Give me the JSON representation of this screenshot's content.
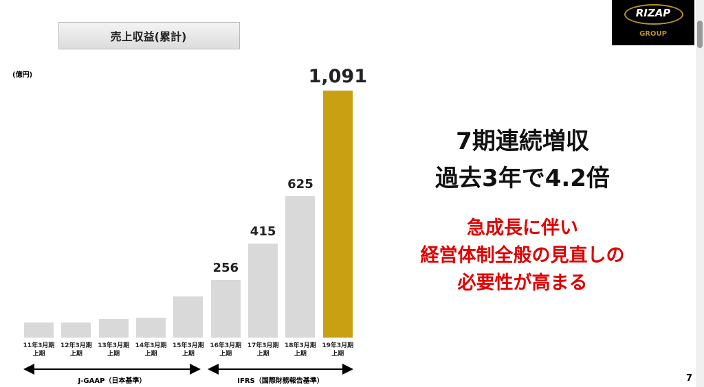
{
  "chart_data": {
    "type": "bar",
    "title": "売上収益(累計)",
    "unit_label": "(億円)",
    "categories": [
      "11年3月期\n上期",
      "12年3月期\n上期",
      "13年3月期\n上期",
      "14年3月期\n上期",
      "15年3月期\n上期",
      "16年3月期\n上期",
      "17年3月期\n上期",
      "18年3月期\n上期",
      "19年3月期\n上期"
    ],
    "values": [
      67,
      67,
      82,
      88,
      182,
      256,
      415,
      625,
      1091
    ],
    "value_labels": [
      null,
      null,
      null,
      null,
      null,
      "256",
      "415",
      "625",
      "1,091"
    ],
    "colors": [
      "#d9d9d9",
      "#d9d9d9",
      "#d9d9d9",
      "#d9d9d9",
      "#d9d9d9",
      "#d9d9d9",
      "#d9d9d9",
      "#d9d9d9",
      "#c9a012"
    ],
    "periods": [
      "J-GAAP（日本基準）",
      "IFRS（国際財務報告基準）"
    ]
  },
  "headline": [
    "7期連続増収",
    "過去3年で4.2倍"
  ],
  "message": [
    "急成長に伴い",
    "経営体制全般の見直しの",
    "必要性が高まる"
  ],
  "logo": {
    "name": "RIZAP",
    "sub": "GROUP"
  },
  "page_number": "7"
}
